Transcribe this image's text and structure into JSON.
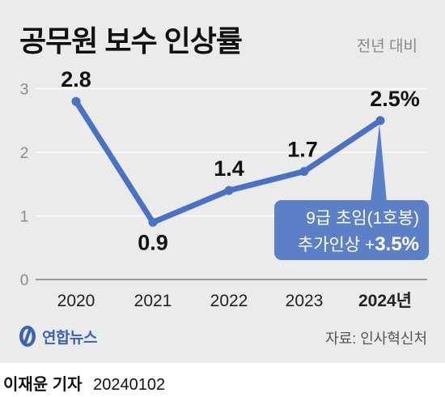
{
  "title": "공무원 보수 인상률",
  "unit_note": "전년 대비",
  "source": "자료: 인사혁신처",
  "logo_text": "연합뉴스",
  "credit_name": "이재윤 기자",
  "credit_date": "20240102",
  "callout_line1": "9급 초임(1호봉)",
  "callout_line2_prefix": "추가인상 +",
  "callout_line2_value": "3.5%",
  "colors": {
    "line": "#4a72c4",
    "callout_bg": "#5b80c8",
    "panel_bg": "#ebebeb"
  },
  "chart_data": {
    "type": "line",
    "categories": [
      "2020",
      "2021",
      "2022",
      "2023",
      "2024년"
    ],
    "values": [
      2.8,
      0.9,
      1.4,
      1.7,
      2.5
    ],
    "data_labels": [
      "2.8",
      "0.9",
      "1.4",
      "1.7",
      "2.5%"
    ],
    "yticks": [
      0,
      1,
      2,
      3
    ],
    "ylim": [
      0,
      3.3
    ],
    "grid": true
  }
}
